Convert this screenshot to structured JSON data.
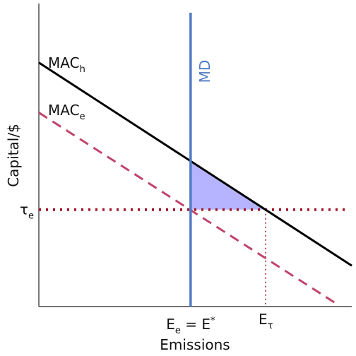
{
  "chart_data": {
    "type": "line",
    "xlabel": "Emissions",
    "ylabel": "Capital/$",
    "xlim": [
      0,
      100
    ],
    "ylim": [
      0,
      100
    ],
    "grid": false,
    "series": [
      {
        "name": "MAC_h",
        "label_main": "MAC",
        "label_sub": "h",
        "style": "solid",
        "color": "#000000",
        "x": [
          0,
          100
        ],
        "y": [
          80.5,
          13.5
        ]
      },
      {
        "name": "MAC_e",
        "label_main": "MAC",
        "label_sub": "e",
        "style": "dashed",
        "color": "#c0456b",
        "x": [
          0,
          95
        ],
        "y": [
          64,
          1
        ]
      },
      {
        "name": "MD",
        "label_main": "MD",
        "style": "solid",
        "color": "#4f7cc6",
        "orientation": "vertical",
        "x": 48.5
      },
      {
        "name": "tau_e",
        "style": "dotted",
        "color": "#a0182b",
        "orientation": "horizontal",
        "y": 32
      }
    ],
    "shaded_region": {
      "color": "#b7b4ff",
      "points": [
        [
          48.5,
          48.0
        ],
        [
          48.5,
          32.0
        ],
        [
          72.5,
          32.0
        ]
      ]
    },
    "x_ticks": [
      {
        "x": 48.5,
        "main1": "E",
        "sub1": "e",
        "mid": " = E",
        "sup": "*"
      },
      {
        "x": 72.5,
        "main1": "E",
        "sub1": "τ"
      }
    ],
    "y_ticks": [
      {
        "y": 32,
        "main": "τ",
        "sub": "e"
      }
    ]
  }
}
